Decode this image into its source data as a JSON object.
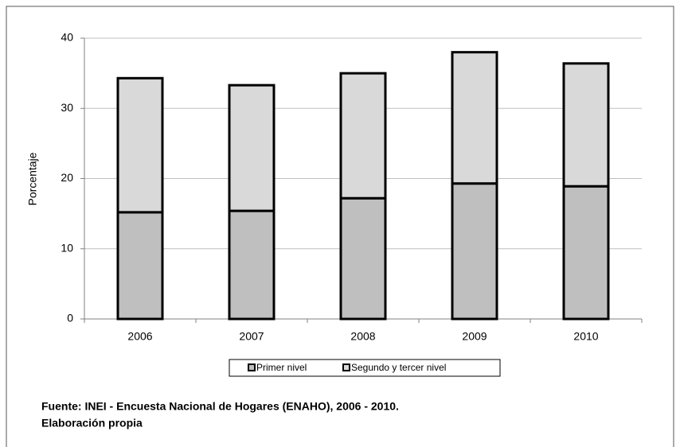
{
  "chart_data": {
    "type": "stacked_bar",
    "ylabel": "Porcentaje",
    "categories": [
      "2006",
      "2007",
      "2008",
      "2009",
      "2010"
    ],
    "series": [
      {
        "name": "Primer nivel",
        "color": "#bfbfbf",
        "values": [
          15.2,
          15.4,
          17.2,
          19.3,
          18.9
        ]
      },
      {
        "name": "Segundo y tercer nivel",
        "color": "#d9d9d9",
        "values": [
          19.1,
          17.9,
          17.8,
          18.7,
          17.5
        ]
      }
    ],
    "ylim": [
      0,
      40
    ],
    "yticks": [
      0,
      10,
      20,
      30,
      40
    ],
    "grid": true,
    "source": "Fuente: INEI - Encuesta Nacional de Hogares (ENAHO), 2006 - 2010.",
    "note": "Elaboración  propia"
  }
}
